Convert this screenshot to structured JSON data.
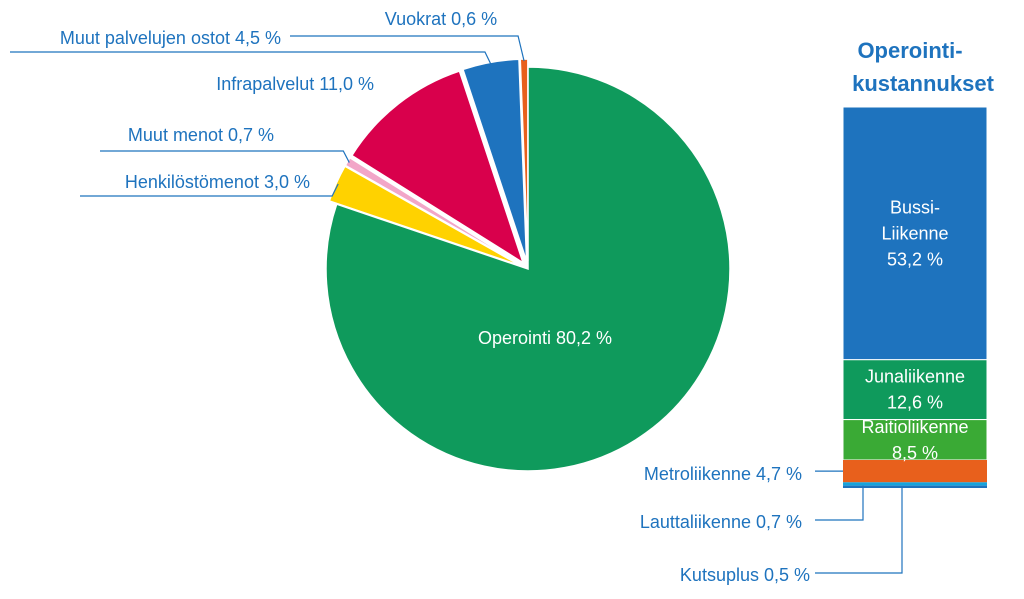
{
  "chart_data": [
    {
      "type": "pie",
      "slices": [
        {
          "label": "Operointi",
          "text": "Operointi  80,2 %",
          "value": 80.2,
          "color": "#0f9a5c"
        },
        {
          "label": "Henkilöstömenot",
          "text": "Henkilöstömenot  3,0 %",
          "value": 3.0,
          "color": "#ffd200"
        },
        {
          "label": "Muut menot",
          "text": "Muut menot 0,7 %",
          "value": 0.7,
          "color": "#f2a6c8"
        },
        {
          "label": "Infrapalvelut",
          "text": "Infrapalvelut  11,0 %",
          "value": 11.0,
          "color": "#d9004c"
        },
        {
          "label": "Muut palvelujen ostot",
          "text": "Muut palvelujen ostot  4,5 %",
          "value": 4.5,
          "color": "#1e73be"
        },
        {
          "label": "Vuokrat",
          "text": "Vuokrat 0,6 %",
          "value": 0.6,
          "color": "#e8601c"
        }
      ]
    },
    {
      "type": "bar",
      "title_lines": [
        "Operointi-",
        "kustannukset"
      ],
      "segments": [
        {
          "label": "Bussi-Liikenne",
          "lines": [
            "Bussi-",
            "Liikenne",
            "53,2 %"
          ],
          "value": 53.2,
          "color": "#1e73be"
        },
        {
          "label": "Junaliikenne",
          "lines": [
            "Junaliikenne",
            "12,6 %"
          ],
          "value": 12.6,
          "color": "#0f9a5c"
        },
        {
          "label": "Raitioliikenne",
          "lines": [
            "Raitioliikenne",
            "8,5 %"
          ],
          "value": 8.5,
          "color": "#3aaa35"
        },
        {
          "label": "Metroliikenne",
          "text": "Metroliikenne  4,7 %",
          "value": 4.7,
          "color": "#e8601c"
        },
        {
          "label": "Lauttaliikenne",
          "text": "Lauttaliikenne  0,7 %",
          "value": 0.7,
          "color": "#17a3dc"
        },
        {
          "label": "Kutsuplus",
          "text": "Kutsuplus  0,5 %",
          "value": 0.5,
          "color": "#1e73be"
        }
      ]
    }
  ]
}
